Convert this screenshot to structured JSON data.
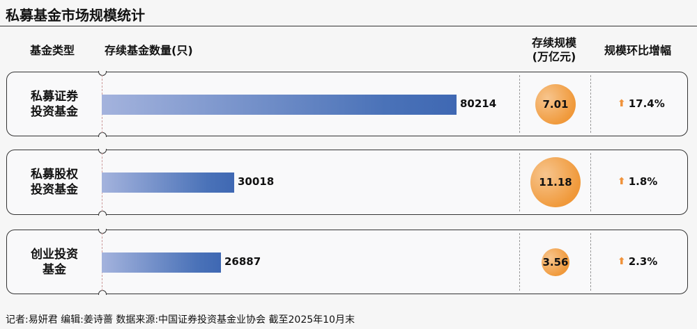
{
  "title": "私募基金市场规模统计",
  "headers": {
    "category": "基金类型",
    "count": "存续基金数量(只)",
    "scale": "存续规模\n(万亿元)",
    "change": "规模环比增幅"
  },
  "chart_data": {
    "type": "bar",
    "categories": [
      "私募证券\n投资基金",
      "私募股权\n投资基金",
      "创业投资\n基金"
    ],
    "series": [
      {
        "name": "存续基金数量(只)",
        "values": [
          80214,
          30018,
          26887
        ]
      },
      {
        "name": "存续规模(万亿元)",
        "values": [
          7.01,
          11.18,
          3.56
        ]
      },
      {
        "name": "规模环比增幅",
        "values": [
          "17.4%",
          "1.8%",
          "2.3%"
        ]
      }
    ],
    "colors": {
      "bar": "#4a72b8",
      "circle": "#f09a3c",
      "arrow": "#f0923a"
    },
    "change_icon": "arrow-up-icon"
  },
  "footer": "记者:易妍君  编辑:姜诗蔷  数据来源:中国证券投资基金业协会 截至2025年10月末"
}
